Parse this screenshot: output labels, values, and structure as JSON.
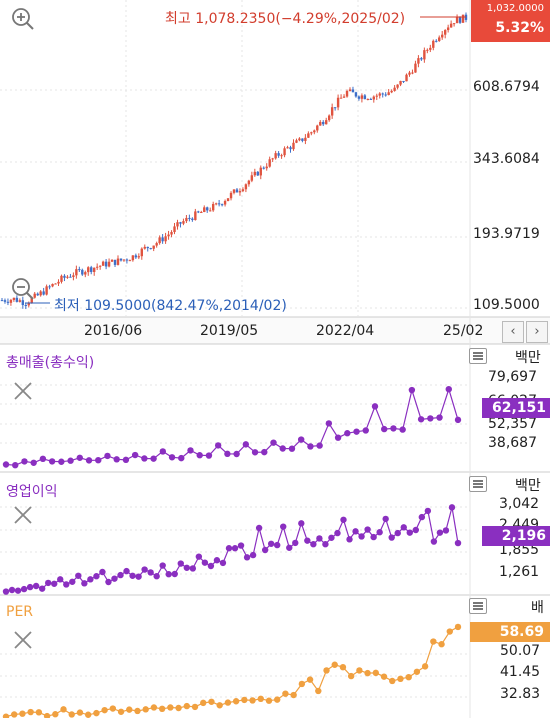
{
  "colors": {
    "up": "#e0533f",
    "down": "#3d6fc9",
    "purple": "#8a2fc0",
    "orange": "#f0a040",
    "red_tag": "#e84a3a",
    "grid": "#e4e4e4",
    "blue_text": "#2b5fb8",
    "red_text": "#d23d2d"
  },
  "icons": {
    "zoom_in": "zoom-in-icon",
    "zoom_out": "zoom-out-icon",
    "menu": "menu-icon",
    "close": "close-icon"
  },
  "main": {
    "high_annotation": "최고 1,078.2350(−4.29%,2025/02)",
    "low_annotation": "최저 109.5000(842.47%,2014/02)",
    "top_value": "1,032.0000",
    "change_pct": "5.32%",
    "y_ticks": [
      "608.6794",
      "343.6084",
      "193.9719",
      "109.5000"
    ],
    "x_ticks": [
      "2016/06",
      "2019/05",
      "2022/04",
      "25/02"
    ]
  },
  "revenue": {
    "title": "총매출(총수익)",
    "unit": "백만",
    "current": "62,151",
    "y_ticks": [
      "79,697",
      "66,027",
      "52,357",
      "38,687"
    ]
  },
  "op_income": {
    "title": "영업이익",
    "unit": "백만",
    "current": "2,196",
    "y_ticks": [
      "3,042",
      "2,449",
      "1,855",
      "1,261"
    ]
  },
  "per": {
    "title": "PER",
    "unit": "배",
    "current": "58.69",
    "y_ticks": [
      "50.07",
      "41.45",
      "32.83"
    ]
  },
  "chart_data": [
    {
      "type": "candlestick",
      "scale": "log",
      "ylim": [
        100,
        1200
      ],
      "x_ticks": [
        "2016/06",
        "2019/05",
        "2022/04",
        "25/02"
      ],
      "y_ticks": [
        608.6794,
        343.6084,
        193.9719,
        109.5
      ],
      "close_path": [
        [
          0,
          112
        ],
        [
          4,
          113
        ],
        [
          8,
          110
        ],
        [
          12,
          116
        ],
        [
          16,
          124
        ],
        [
          20,
          132
        ],
        [
          24,
          138
        ],
        [
          28,
          142
        ],
        [
          32,
          146
        ],
        [
          36,
          150
        ],
        [
          40,
          153
        ],
        [
          44,
          158
        ],
        [
          48,
          168
        ],
        [
          52,
          176
        ],
        [
          56,
          188
        ],
        [
          60,
          205
        ],
        [
          64,
          216
        ],
        [
          68,
          226
        ],
        [
          72,
          235
        ],
        [
          76,
          252
        ],
        [
          80,
          270
        ],
        [
          84,
          292
        ],
        [
          88,
          320
        ],
        [
          92,
          346
        ],
        [
          96,
          370
        ],
        [
          100,
          390
        ],
        [
          104,
          420
        ],
        [
          108,
          460
        ],
        [
          112,
          520
        ],
        [
          116,
          575
        ],
        [
          120,
          560
        ],
        [
          124,
          555
        ],
        [
          128,
          565
        ],
        [
          132,
          585
        ],
        [
          136,
          650
        ],
        [
          140,
          730
        ],
        [
          144,
          830
        ],
        [
          148,
          930
        ],
        [
          152,
          1010
        ],
        [
          156,
          1030
        ]
      ],
      "high": 1078.235,
      "low": 109.5
    },
    {
      "type": "line",
      "name": "총매출(총수익)",
      "unit": "백만",
      "ylim": [
        33000,
        90000
      ],
      "values": [
        36200,
        35800,
        38000,
        37200,
        39500,
        38000,
        37800,
        38400,
        40100,
        38600,
        38700,
        41200,
        39200,
        38900,
        41700,
        39700,
        39600,
        43800,
        40400,
        39900,
        44400,
        41600,
        41400,
        47300,
        42400,
        42300,
        47900,
        43300,
        43400,
        48900,
        45500,
        45400,
        50700,
        46700,
        47200,
        60100,
        51800,
        54400,
        55300,
        56000,
        70000,
        56800,
        57200,
        56500,
        79500,
        62500,
        63000,
        63500,
        80000,
        62151
      ]
    },
    {
      "type": "line",
      "name": "영업이익",
      "unit": "백만",
      "ylim": [
        1050,
        3300
      ],
      "values": [
        1105,
        1140,
        1125,
        1160,
        1205,
        1230,
        1170,
        1300,
        1280,
        1380,
        1265,
        1325,
        1460,
        1290,
        1380,
        1450,
        1545,
        1320,
        1395,
        1475,
        1565,
        1460,
        1440,
        1600,
        1535,
        1450,
        1690,
        1495,
        1500,
        1735,
        1640,
        1625,
        1890,
        1755,
        1680,
        1810,
        1750,
        2080,
        2080,
        2140,
        1875,
        1925,
        2535,
        2040,
        2180,
        2150,
        2565,
        2090,
        2200,
        2640,
        2250,
        2170,
        2300,
        2170,
        2315,
        2420,
        2720,
        2280,
        2460,
        2345,
        2500,
        2330,
        2440,
        2740,
        2320,
        2420,
        2550,
        2430,
        2490,
        2780,
        2920,
        2230,
        2430,
        2480,
        3000,
        2196
      ]
    },
    {
      "type": "line",
      "name": "PER",
      "unit": "배",
      "ylim": [
        25,
        62
      ],
      "values": [
        25.5,
        26.3,
        26.6,
        27.2,
        27.1,
        25.7,
        26.4,
        28.2,
        26.3,
        27.0,
        26.2,
        26.8,
        27.9,
        28.5,
        27.3,
        28.1,
        27.6,
        28.2,
        28.9,
        28.4,
        28.9,
        28.7,
        29.4,
        29.1,
        30.6,
        31.0,
        29.7,
        30.7,
        31.2,
        31.7,
        31.5,
        32.1,
        31.4,
        31.8,
        34.0,
        33.5,
        37.6,
        39.2,
        35.0,
        42.6,
        44.7,
        43.8,
        40.5,
        42.6,
        41.6,
        41.7,
        40.3,
        38.7,
        39.5,
        40.1,
        42.1,
        44.1,
        53.3,
        52.3,
        57.0,
        58.69
      ]
    }
  ]
}
